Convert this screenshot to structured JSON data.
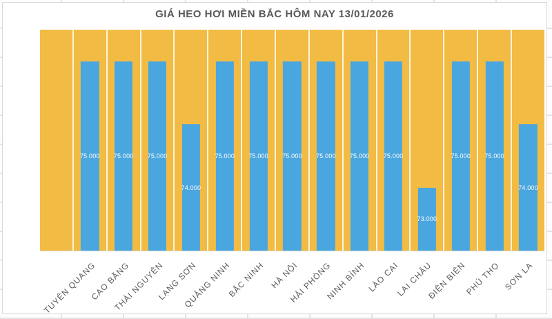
{
  "chart_data": {
    "type": "bar",
    "title": "GIÁ HEO HƠI MIỀN BẮC HÔM NAY 13/01/2026",
    "categories": [
      "TUYÊN QUANG",
      "CAO BẰNG",
      "THÁI NGUYÊN",
      "LẠNG SƠN",
      "QUẢNG NINH",
      "BẮC NINH",
      "HÀ NỘI",
      "HẢI PHÒNG",
      "NINH BÌNH",
      "LÀO CAI",
      "LAI CHÂU",
      "ĐIỆN BIÊN",
      "PHÚ THỌ",
      "SƠN LA"
    ],
    "values": [
      75000,
      75000,
      75000,
      74000,
      75000,
      75000,
      75000,
      75000,
      75000,
      75000,
      73000,
      75000,
      75000,
      74000
    ],
    "value_labels": [
      "75.000",
      "75.000",
      "75.000",
      "74.000",
      "75.000",
      "75.000",
      "75.000",
      "75.000",
      "75.000",
      "75.000",
      "73.000",
      "75.000",
      "75.000",
      "74.000"
    ],
    "xlabel": "",
    "ylabel": "",
    "ylim": [
      72000,
      75500
    ],
    "y_axis_labels_visible": false,
    "leading_empty_column": true,
    "legend": "none",
    "grid": "vertical white separators between categories",
    "data_label_position": "center-of-bar",
    "category_label_rotation_deg": 45,
    "colors": {
      "bar": "#4AA6DE",
      "plot_background": "#F2BB43",
      "separator": "rgba(255,255,255,0.82)",
      "value_label_text": "#FFFFFF",
      "category_label_text": "#595959",
      "title_text": "#595959",
      "chart_border": "#D9D9D9"
    }
  }
}
